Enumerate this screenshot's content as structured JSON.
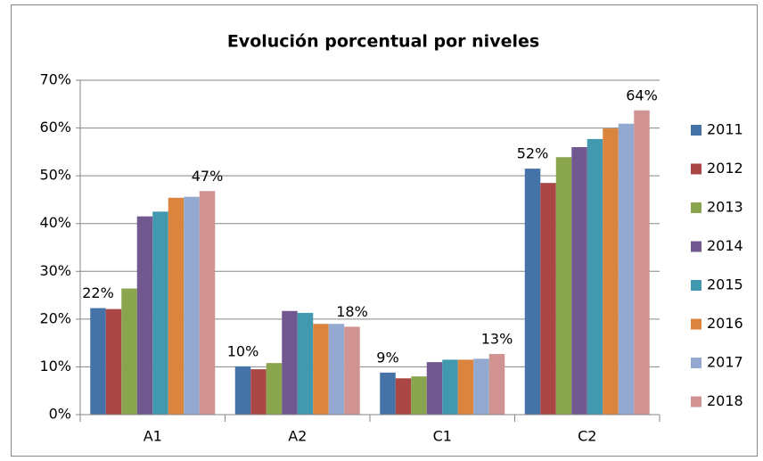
{
  "chart_data": {
    "type": "bar",
    "title": "Evolución porcentual por niveles",
    "categories": [
      "A1",
      "A2",
      "C1",
      "C2"
    ],
    "series": [
      {
        "name": "2011",
        "color": "#4572a7",
        "values": [
          22.3,
          10.1,
          8.8,
          51.5
        ],
        "value_labels": [
          "22%",
          "10%",
          "9%",
          "52%"
        ]
      },
      {
        "name": "2012",
        "color": "#aa4643",
        "values": [
          22.1,
          9.5,
          7.6,
          48.5
        ]
      },
      {
        "name": "2013",
        "color": "#89a54e",
        "values": [
          26.4,
          10.8,
          8.0,
          53.9
        ]
      },
      {
        "name": "2014",
        "color": "#71588f",
        "values": [
          41.5,
          21.7,
          11.0,
          56.0
        ]
      },
      {
        "name": "2015",
        "color": "#4198af",
        "values": [
          42.5,
          21.3,
          11.5,
          57.7
        ]
      },
      {
        "name": "2016",
        "color": "#db843d",
        "values": [
          45.4,
          19.0,
          11.5,
          59.9
        ]
      },
      {
        "name": "2017",
        "color": "#93a9cf",
        "values": [
          45.6,
          19.0,
          11.7,
          60.9
        ]
      },
      {
        "name": "2018",
        "color": "#d19392",
        "values": [
          46.8,
          18.4,
          12.7,
          63.7
        ],
        "value_labels": [
          "47%",
          "18%",
          "13%",
          "64%"
        ]
      }
    ],
    "ylim": [
      0,
      70
    ],
    "yticks": [
      {
        "value": 0,
        "label": "0%"
      },
      {
        "value": 10,
        "label": "10%"
      },
      {
        "value": 20,
        "label": "20%"
      },
      {
        "value": 30,
        "label": "30%"
      },
      {
        "value": 40,
        "label": "40%"
      },
      {
        "value": 50,
        "label": "50%"
      },
      {
        "value": 60,
        "label": "60%"
      },
      {
        "value": 70,
        "label": "70%"
      }
    ],
    "grid": true,
    "legend": "right"
  }
}
